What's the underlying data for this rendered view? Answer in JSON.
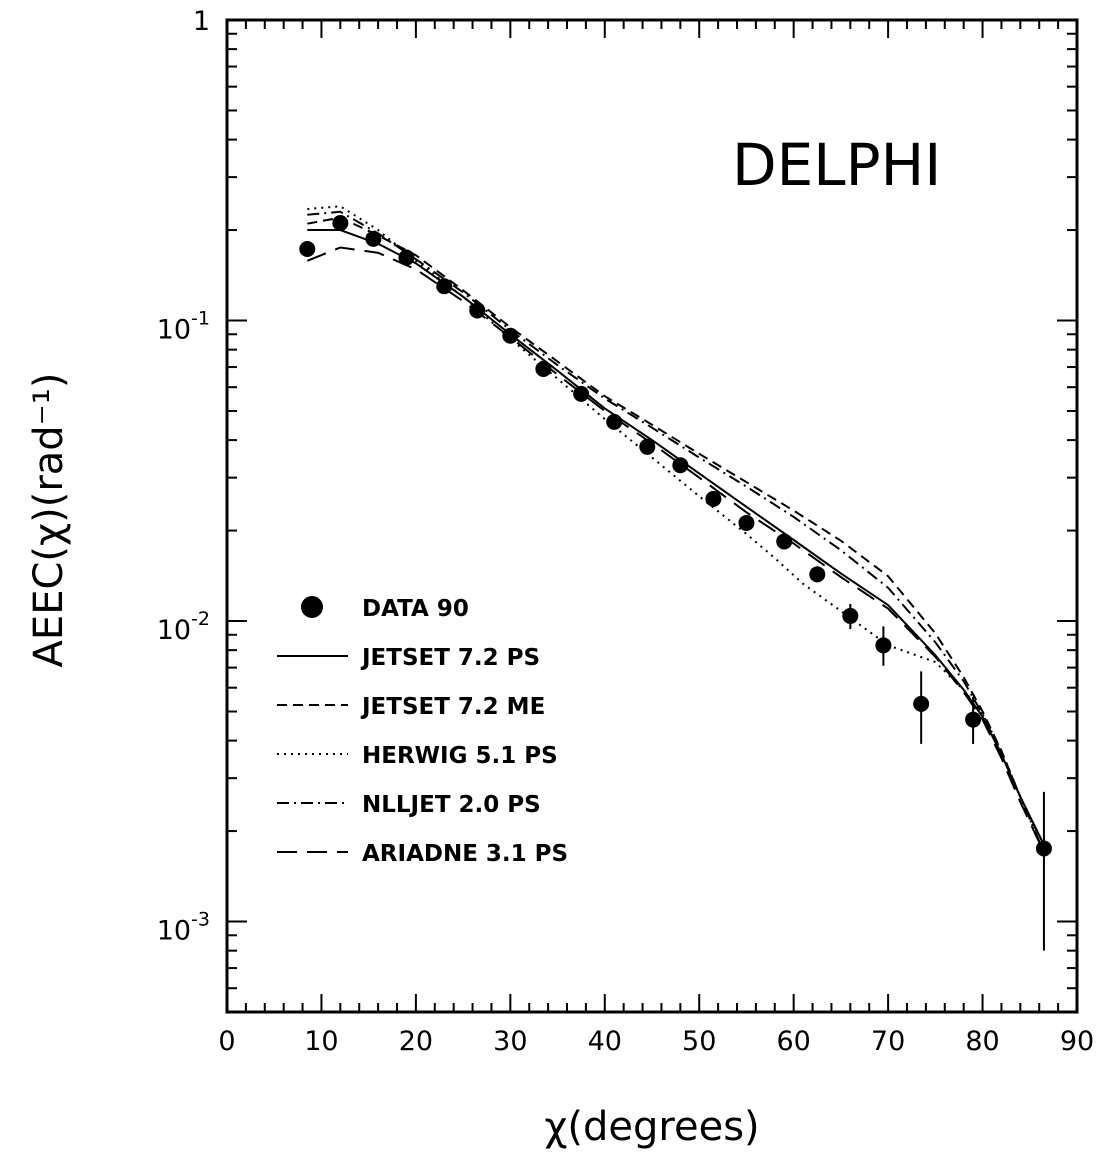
{
  "chart_data": {
    "type": "line",
    "annotation": "DELPHI",
    "xlabel": "χ(degrees)",
    "ylabel": "AEEC(χ)(rad⁻¹)",
    "xlim": [
      0,
      90
    ],
    "ylim": [
      0.0005,
      1
    ],
    "yscale": "log",
    "grid": false,
    "legend_position": "left-center",
    "x_ticks": [
      0,
      10,
      20,
      30,
      40,
      50,
      60,
      70,
      80,
      90
    ],
    "x_tick_labels": [
      "0",
      "10",
      "20",
      "30",
      "40",
      "50",
      "60",
      "70",
      "80",
      "90"
    ],
    "y_ticks": [
      1,
      0.1,
      0.01,
      0.001
    ],
    "y_tick_labels": [
      {
        "base": "1",
        "exp": ""
      },
      {
        "base": "10",
        "exp": "-1"
      },
      {
        "base": "10",
        "exp": "-2"
      },
      {
        "base": "10",
        "exp": "-3"
      }
    ],
    "data_points": {
      "name": "DATA 90",
      "x": [
        8.5,
        12,
        15.5,
        19,
        23,
        26.5,
        30,
        33.5,
        37.5,
        41,
        44.5,
        48,
        51.5,
        55,
        59,
        62.5,
        66,
        69.5,
        73.5,
        79,
        86.5
      ],
      "y": [
        0.173,
        0.211,
        0.187,
        0.162,
        0.13,
        0.108,
        0.089,
        0.069,
        0.057,
        0.046,
        0.038,
        0.033,
        0.0255,
        0.0212,
        0.0184,
        0.0143,
        0.0104,
        0.0083,
        0.0053,
        0.0047,
        0.00175
      ],
      "yerr_low": [
        0.17,
        0.208,
        0.184,
        0.159,
        0.128,
        0.106,
        0.087,
        0.068,
        0.056,
        0.045,
        0.037,
        0.032,
        0.0248,
        0.0203,
        0.0177,
        0.0135,
        0.0094,
        0.0071,
        0.0039,
        0.0039,
        0.0008
      ],
      "yerr_high": [
        0.176,
        0.215,
        0.19,
        0.165,
        0.133,
        0.111,
        0.091,
        0.071,
        0.059,
        0.047,
        0.039,
        0.034,
        0.0263,
        0.0222,
        0.0192,
        0.0152,
        0.0114,
        0.0096,
        0.0068,
        0.0056,
        0.0027
      ]
    },
    "series": [
      {
        "name": "JETSET 7.2 PS",
        "style": "solid",
        "x": [
          8.5,
          12,
          16,
          20,
          25,
          30,
          35,
          40,
          45,
          50,
          55,
          60,
          65,
          70,
          75,
          78,
          80,
          82,
          84,
          86.5
        ],
        "y": [
          0.2,
          0.2,
          0.18,
          0.155,
          0.12,
          0.09,
          0.068,
          0.051,
          0.04,
          0.031,
          0.024,
          0.0186,
          0.0144,
          0.0113,
          0.0077,
          0.0059,
          0.0048,
          0.0036,
          0.0026,
          0.0018
        ]
      },
      {
        "name": "JETSET 7.2 ME",
        "style": "dashed",
        "x": [
          8.5,
          12,
          16,
          20,
          25,
          30,
          35,
          40,
          45,
          50,
          55,
          60,
          65,
          70,
          75,
          78,
          80,
          82,
          84,
          86.5
        ],
        "y": [
          0.21,
          0.22,
          0.192,
          0.165,
          0.126,
          0.095,
          0.073,
          0.056,
          0.045,
          0.036,
          0.029,
          0.0233,
          0.0185,
          0.0141,
          0.0091,
          0.0065,
          0.005,
          0.0037,
          0.0026,
          0.0018
        ]
      },
      {
        "name": "HERWIG 5.1 PS",
        "style": "dotted",
        "x": [
          8.5,
          12,
          16,
          20,
          25,
          30,
          35,
          40,
          45,
          50,
          55,
          58,
          61,
          65,
          70,
          75,
          78,
          80,
          82,
          84,
          86.5
        ],
        "y": [
          0.235,
          0.24,
          0.2,
          0.158,
          0.12,
          0.087,
          0.064,
          0.047,
          0.035,
          0.026,
          0.0195,
          0.0162,
          0.0133,
          0.0108,
          0.0083,
          0.0073,
          0.0059,
          0.0049,
          0.0037,
          0.0026,
          0.0017
        ]
      },
      {
        "name": "NLLJET 2.0 PS",
        "style": "dashdot",
        "x": [
          8.5,
          12,
          16,
          20,
          25,
          30,
          35,
          40,
          45,
          50,
          55,
          60,
          65,
          70,
          75,
          78,
          80,
          82,
          84,
          86.5
        ],
        "y": [
          0.225,
          0.23,
          0.195,
          0.16,
          0.124,
          0.093,
          0.071,
          0.055,
          0.044,
          0.035,
          0.028,
          0.0222,
          0.0172,
          0.0129,
          0.0085,
          0.0063,
          0.0049,
          0.0036,
          0.0026,
          0.0017
        ]
      },
      {
        "name": "ARIADNE 3.1 PS",
        "style": "longdash",
        "x": [
          8.5,
          12,
          16,
          20,
          25,
          30,
          35,
          40,
          45,
          50,
          55,
          60,
          65,
          70,
          75,
          78,
          80,
          82,
          84,
          86.5
        ],
        "y": [
          0.158,
          0.175,
          0.168,
          0.148,
          0.116,
          0.088,
          0.066,
          0.05,
          0.039,
          0.03,
          0.023,
          0.0181,
          0.014,
          0.011,
          0.0076,
          0.0058,
          0.0047,
          0.0035,
          0.0025,
          0.0017
        ]
      }
    ]
  }
}
